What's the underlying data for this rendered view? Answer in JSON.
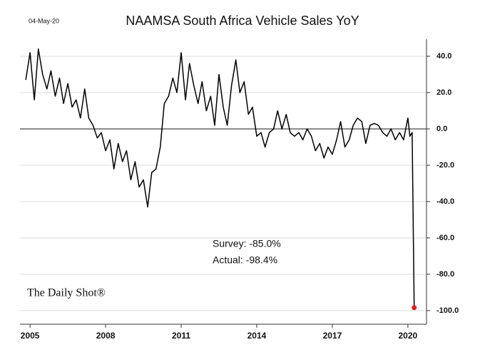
{
  "chart_data": {
    "type": "line",
    "title": "NAAMSA South Africa Vehicle Sales YoY",
    "date_label": "04-May-20",
    "source": "The Daily Shot®",
    "annotations": [
      "Survey: -85.0%",
      "Actual: -98.4%"
    ],
    "color": "#000000",
    "last_point_color": "#e0201b",
    "grid": true,
    "xlim": [
      2004.6,
      2020.74
    ],
    "ylim": [
      49.4,
      -107.5
    ],
    "xticks": [
      2005,
      2008,
      2011,
      2014,
      2017,
      2020
    ],
    "yticks": [
      {
        "value": 40,
        "label": "40.0"
      },
      {
        "value": 20,
        "label": "20.0"
      },
      {
        "value": 0,
        "label": "0.0"
      },
      {
        "value": -20,
        "label": "-20.0"
      },
      {
        "value": -40,
        "label": "-40.0"
      },
      {
        "value": -60,
        "label": "-60.0"
      },
      {
        "value": -80,
        "label": "-80.0"
      },
      {
        "value": -100,
        "label": "-100.0"
      }
    ],
    "x": [
      2004.83,
      2005.0,
      2005.17,
      2005.33,
      2005.5,
      2005.67,
      2005.83,
      2006.0,
      2006.17,
      2006.33,
      2006.5,
      2006.67,
      2006.83,
      2007.0,
      2007.17,
      2007.33,
      2007.5,
      2007.67,
      2007.83,
      2008.0,
      2008.17,
      2008.33,
      2008.5,
      2008.67,
      2008.83,
      2009.0,
      2009.17,
      2009.33,
      2009.5,
      2009.67,
      2009.83,
      2010.0,
      2010.17,
      2010.33,
      2010.5,
      2010.67,
      2010.83,
      2011.0,
      2011.17,
      2011.33,
      2011.5,
      2011.67,
      2011.83,
      2012.0,
      2012.17,
      2012.33,
      2012.5,
      2012.67,
      2012.83,
      2013.0,
      2013.17,
      2013.33,
      2013.5,
      2013.67,
      2013.83,
      2014.0,
      2014.17,
      2014.33,
      2014.5,
      2014.67,
      2014.83,
      2015.0,
      2015.17,
      2015.33,
      2015.5,
      2015.67,
      2015.83,
      2016.0,
      2016.17,
      2016.33,
      2016.5,
      2016.67,
      2016.83,
      2017.0,
      2017.17,
      2017.33,
      2017.5,
      2017.67,
      2017.83,
      2018.0,
      2018.17,
      2018.33,
      2018.5,
      2018.67,
      2018.83,
      2019.0,
      2019.17,
      2019.33,
      2019.5,
      2019.67,
      2019.83,
      2020.0,
      2020.08,
      2020.17,
      2020.25
    ],
    "values": [
      27,
      42,
      16,
      44,
      30,
      22,
      32,
      18,
      28,
      14,
      25,
      12,
      16,
      6,
      22,
      6,
      2,
      -5,
      -2,
      -12,
      -6,
      -22,
      -8,
      -18,
      -12,
      -28,
      -18,
      -32,
      -28,
      -43,
      -24,
      -22,
      -10,
      14,
      18,
      28,
      20,
      42,
      16,
      36,
      24,
      14,
      26,
      10,
      18,
      2,
      30,
      12,
      2,
      24,
      38,
      20,
      26,
      8,
      12,
      -4,
      -2,
      -10,
      -2,
      0,
      10,
      0,
      8,
      -2,
      -4,
      -2,
      -6,
      0,
      -4,
      -12,
      -8,
      -16,
      -10,
      -14,
      -6,
      4,
      -10,
      -6,
      2,
      6,
      4,
      -8,
      2,
      3,
      2,
      -2,
      -4,
      0,
      -6,
      -2,
      -6,
      6,
      -4,
      -2,
      -98.4
    ]
  }
}
